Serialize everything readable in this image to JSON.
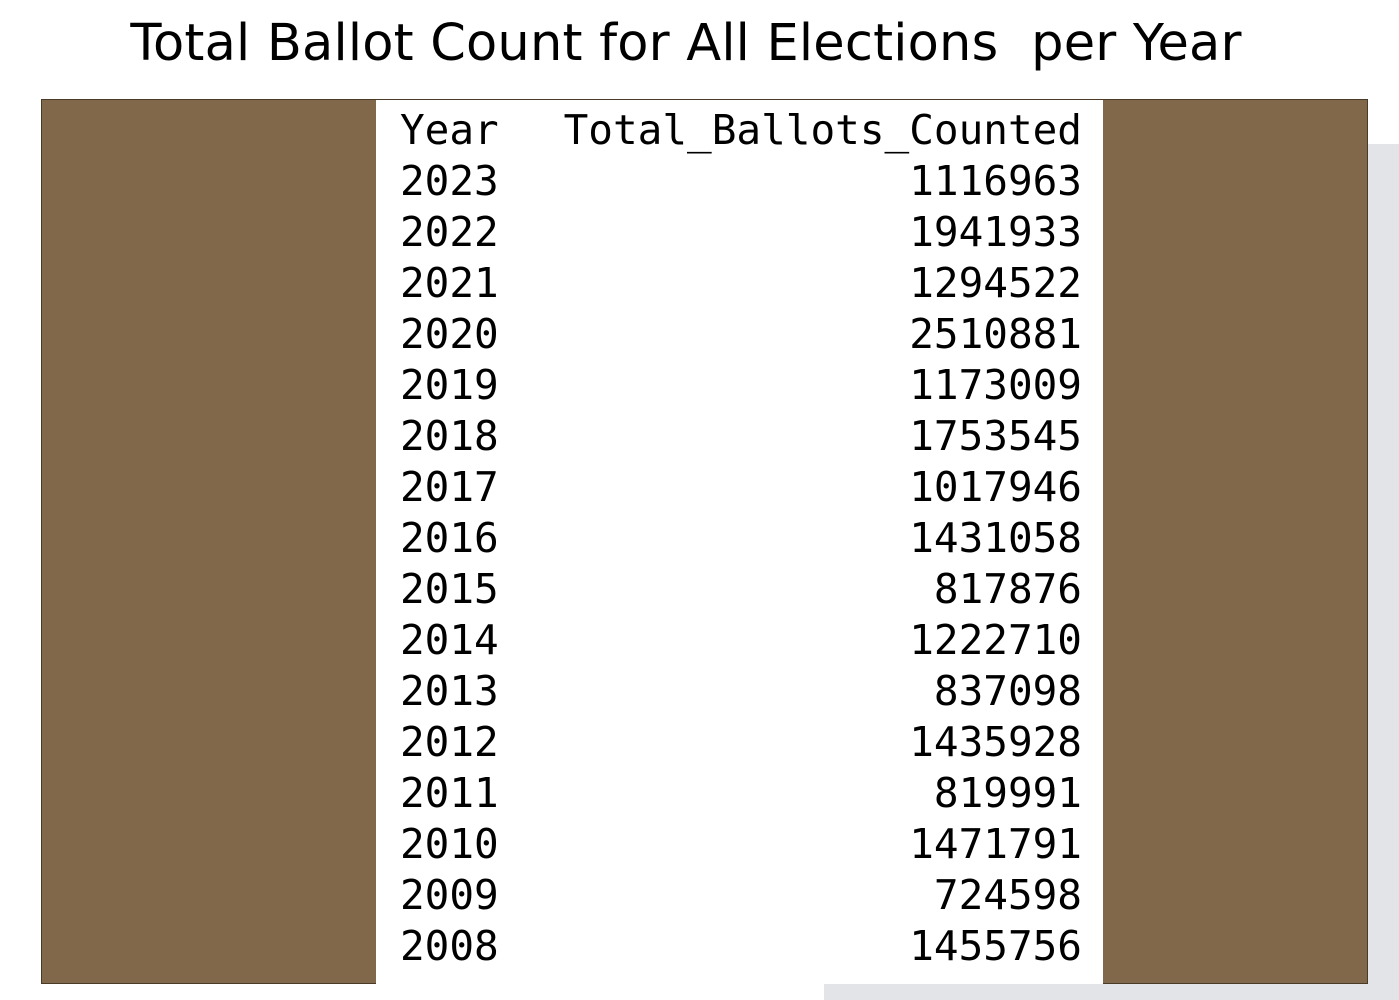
{
  "title": "Total Ballot Count for All Elections  per Year",
  "colors": {
    "frame": "#82684a",
    "sheet": "#ffffff",
    "shadow": "#e2e4e8",
    "text": "#000000"
  },
  "table": {
    "headers": {
      "year": "Year",
      "total": "Total_Ballots_Counted"
    },
    "rows": [
      {
        "year": "2023",
        "total": "1116963"
      },
      {
        "year": "2022",
        "total": "1941933"
      },
      {
        "year": "2021",
        "total": "1294522"
      },
      {
        "year": "2020",
        "total": "2510881"
      },
      {
        "year": "2019",
        "total": "1173009"
      },
      {
        "year": "2018",
        "total": "1753545"
      },
      {
        "year": "2017",
        "total": "1017946"
      },
      {
        "year": "2016",
        "total": "1431058"
      },
      {
        "year": "2015",
        "total": "817876"
      },
      {
        "year": "2014",
        "total": "1222710"
      },
      {
        "year": "2013",
        "total": "837098"
      },
      {
        "year": "2012",
        "total": "1435928"
      },
      {
        "year": "2011",
        "total": "819991"
      },
      {
        "year": "2010",
        "total": "1471791"
      },
      {
        "year": "2009",
        "total": "724598"
      },
      {
        "year": "2008",
        "total": "1455756"
      }
    ]
  }
}
